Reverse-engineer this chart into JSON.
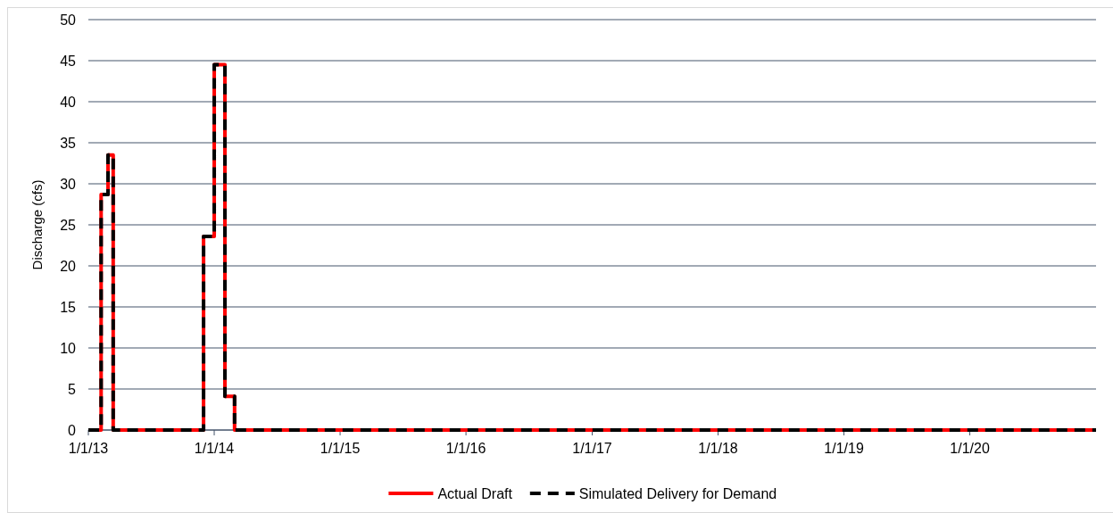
{
  "chart_data": {
    "type": "step",
    "ylabel": "Discharge (cfs)",
    "x": [
      "2013-01-01",
      "2013-02-07",
      "2013-02-27",
      "2013-03-14",
      "2013-12-01",
      "2014-01-01",
      "2014-02-01",
      "2014-03-01",
      "2021-01-01"
    ],
    "series": [
      {
        "name": "Actual Draft",
        "color": "#ff0000",
        "line_style": "solid",
        "values": [
          0,
          28.7,
          33.5,
          0,
          23.6,
          44.5,
          4.1,
          0,
          0
        ]
      },
      {
        "name": "Simulated Delivery for Demand",
        "color": "#000000",
        "line_style": "dashed",
        "values": [
          0,
          28.7,
          33.5,
          0,
          23.6,
          44.5,
          4.1,
          0,
          0
        ]
      }
    ],
    "xlim": [
      "2013-01-01",
      "2021-01-01"
    ],
    "xticks": [
      {
        "value": "2013-01-01",
        "label": "1/1/13"
      },
      {
        "value": "2014-01-01",
        "label": "1/1/14"
      },
      {
        "value": "2015-01-01",
        "label": "1/1/15"
      },
      {
        "value": "2016-01-01",
        "label": "1/1/16"
      },
      {
        "value": "2017-01-01",
        "label": "1/1/17"
      },
      {
        "value": "2018-01-01",
        "label": "1/1/18"
      },
      {
        "value": "2019-01-01",
        "label": "1/1/19"
      },
      {
        "value": "2020-01-01",
        "label": "1/1/20"
      }
    ],
    "ylim": [
      0,
      50
    ],
    "yticks": [
      0,
      5,
      10,
      15,
      20,
      25,
      30,
      35,
      40,
      45,
      50
    ],
    "grid": "y",
    "legend": "bottom"
  }
}
